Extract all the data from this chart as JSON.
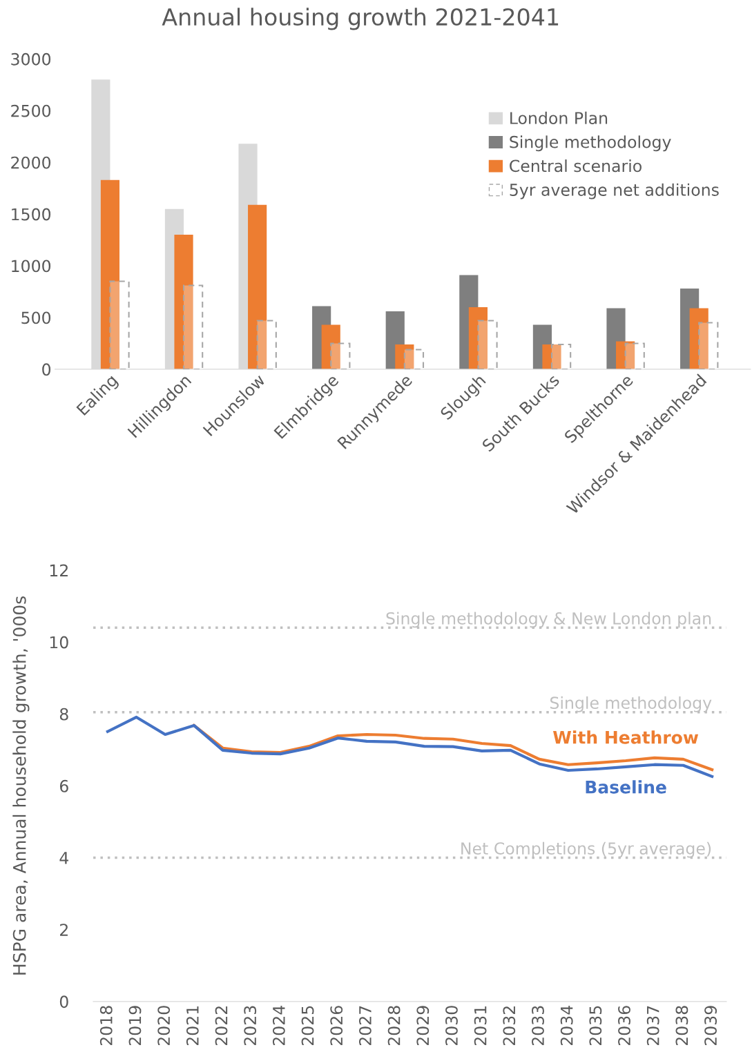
{
  "chart_data": [
    {
      "type": "bar",
      "title": "Annual housing growth 2021-2041",
      "categories": [
        "Ealing",
        "Hillingdon",
        "Hounslow",
        "Elmbridge",
        "Runnymede",
        "Slough",
        "South Bucks",
        "Spelthorne",
        "Windsor & Maidenhead"
      ],
      "series": [
        {
          "name": "London Plan",
          "color": "#d9d9d9",
          "values": [
            2800,
            1550,
            2180,
            null,
            null,
            null,
            null,
            null,
            null
          ]
        },
        {
          "name": "Single methodology",
          "color": "#7f7f7f",
          "values": [
            null,
            null,
            null,
            610,
            560,
            910,
            430,
            590,
            780
          ]
        },
        {
          "name": "Central scenario",
          "color": "#ed7d31",
          "values": [
            1830,
            1300,
            1590,
            430,
            240,
            600,
            240,
            270,
            590
          ]
        },
        {
          "name": "5yr average net additions",
          "color": "#a6a6a6",
          "line_style": "dashed",
          "values": [
            850,
            810,
            470,
            250,
            190,
            470,
            240,
            250,
            450
          ]
        }
      ],
      "ylim": [
        0,
        3000
      ],
      "yticks": [
        0,
        500,
        1000,
        1500,
        2000,
        2500,
        3000
      ],
      "grid": false,
      "legend": "top right"
    },
    {
      "type": "line",
      "ylabel": "HSPG area, Annual household growth, '000s",
      "categories": [
        "2018",
        "2019",
        "2020",
        "2021",
        "2022",
        "2023",
        "2024",
        "2025",
        "2026",
        "2027",
        "2028",
        "2029",
        "2030",
        "2031",
        "2032",
        "2033",
        "2034",
        "2035",
        "2036",
        "2037",
        "2038",
        "2039"
      ],
      "series": [
        {
          "name": "With Heathrow",
          "color": "#ed7d31",
          "values": [
            null,
            null,
            null,
            7.68,
            7.05,
            6.95,
            6.93,
            7.1,
            7.39,
            7.43,
            7.41,
            7.32,
            7.3,
            7.18,
            7.12,
            6.74,
            6.59,
            6.64,
            6.7,
            6.78,
            6.74,
            6.45
          ]
        },
        {
          "name": "Baseline",
          "color": "#4472c4",
          "values": [
            7.51,
            7.91,
            7.43,
            7.68,
            6.99,
            6.91,
            6.89,
            7.05,
            7.33,
            7.24,
            7.22,
            7.1,
            7.09,
            6.97,
            6.99,
            6.61,
            6.43,
            6.47,
            6.53,
            6.59,
            6.57,
            6.26
          ]
        }
      ],
      "ref_lines": [
        {
          "axis": "y",
          "value": 10.4,
          "label": "Single methodology & New London plan",
          "color": "#bfbfbf",
          "line_style": "dotted"
        },
        {
          "axis": "y",
          "value": 8.05,
          "label": "Single methodology",
          "color": "#bfbfbf",
          "line_style": "dotted"
        },
        {
          "axis": "y",
          "value": 4,
          "label": "Net Completions (5yr average)",
          "color": "#bfbfbf",
          "line_style": "dotted"
        }
      ],
      "ylim": [
        0,
        12
      ],
      "yticks": [
        0,
        2,
        4,
        6,
        8,
        10,
        12
      ],
      "grid": false,
      "legend": false,
      "marker": "none",
      "line_style": "solid"
    }
  ]
}
